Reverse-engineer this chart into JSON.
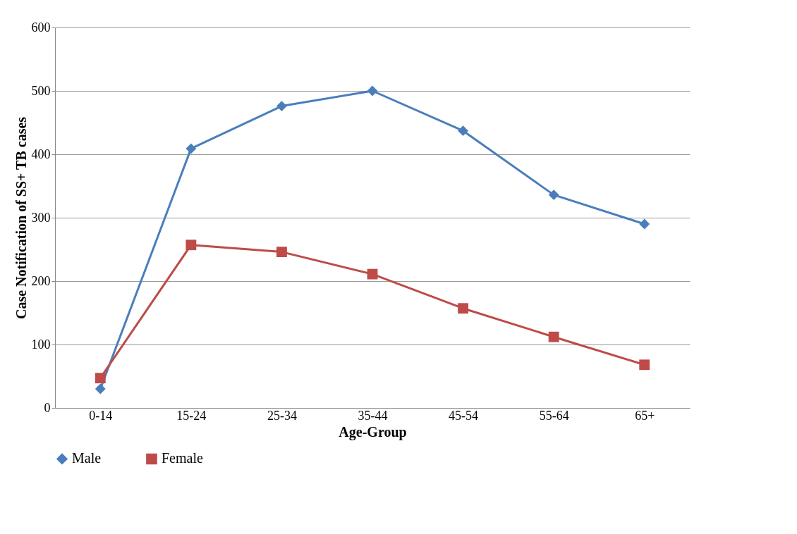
{
  "chart_data": {
    "type": "line",
    "xlabel": "Age-Group",
    "ylabel": "Case Notification of SS+ TB cases",
    "categories": [
      "0-14",
      "15-24",
      "25-34",
      "35-44",
      "45-54",
      "55-64",
      "65+"
    ],
    "series": [
      {
        "name": "Male",
        "color": "#4a7ebb",
        "marker": "diamond",
        "values": [
          30,
          409,
          476,
          500,
          437,
          336,
          290
        ]
      },
      {
        "name": "Female",
        "color": "#be4b48",
        "marker": "square",
        "values": [
          47,
          257,
          246,
          211,
          157,
          112,
          68
        ]
      }
    ],
    "ylim": [
      0,
      600
    ],
    "yticks": [
      0,
      100,
      200,
      300,
      400,
      500,
      600
    ],
    "grid": "y",
    "legend": "bottom",
    "line_style": "solid"
  }
}
